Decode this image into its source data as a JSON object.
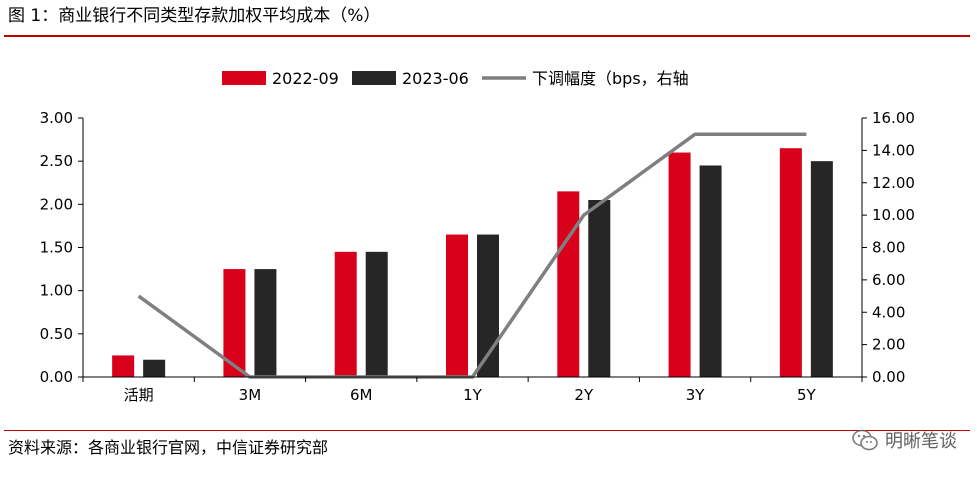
{
  "figure": {
    "title": "图 1：商业银行不同类型存款加权平均成本（%）",
    "source": "资料来源：各商业银行官网，中信证券研究部",
    "watermark": "明晰笔谈"
  },
  "colors": {
    "series_2022": "#d9001b",
    "series_2023": "#262626",
    "line": "#7f7f7f",
    "rule": "#c00000"
  },
  "chart_data": {
    "type": "bar",
    "categories": [
      "活期",
      "3M",
      "6M",
      "1Y",
      "2Y",
      "3Y",
      "5Y"
    ],
    "series": [
      {
        "name": "2022-09",
        "type": "bar",
        "axis": "left",
        "values": [
          0.25,
          1.25,
          1.45,
          1.65,
          2.15,
          2.6,
          2.65
        ]
      },
      {
        "name": "2023-06",
        "type": "bar",
        "axis": "left",
        "values": [
          0.2,
          1.25,
          1.45,
          1.65,
          2.05,
          2.45,
          2.5
        ]
      },
      {
        "name": "下调幅度（bps，右轴",
        "type": "line",
        "axis": "right",
        "values": [
          5,
          0,
          0,
          0,
          10,
          15,
          15
        ]
      }
    ],
    "left_axis": {
      "min": 0,
      "max": 3,
      "step": 0.5,
      "decimals": 2
    },
    "right_axis": {
      "min": 0,
      "max": 16,
      "step": 2,
      "decimals": 2
    },
    "legend_placement": "top-center",
    "grid": false
  }
}
